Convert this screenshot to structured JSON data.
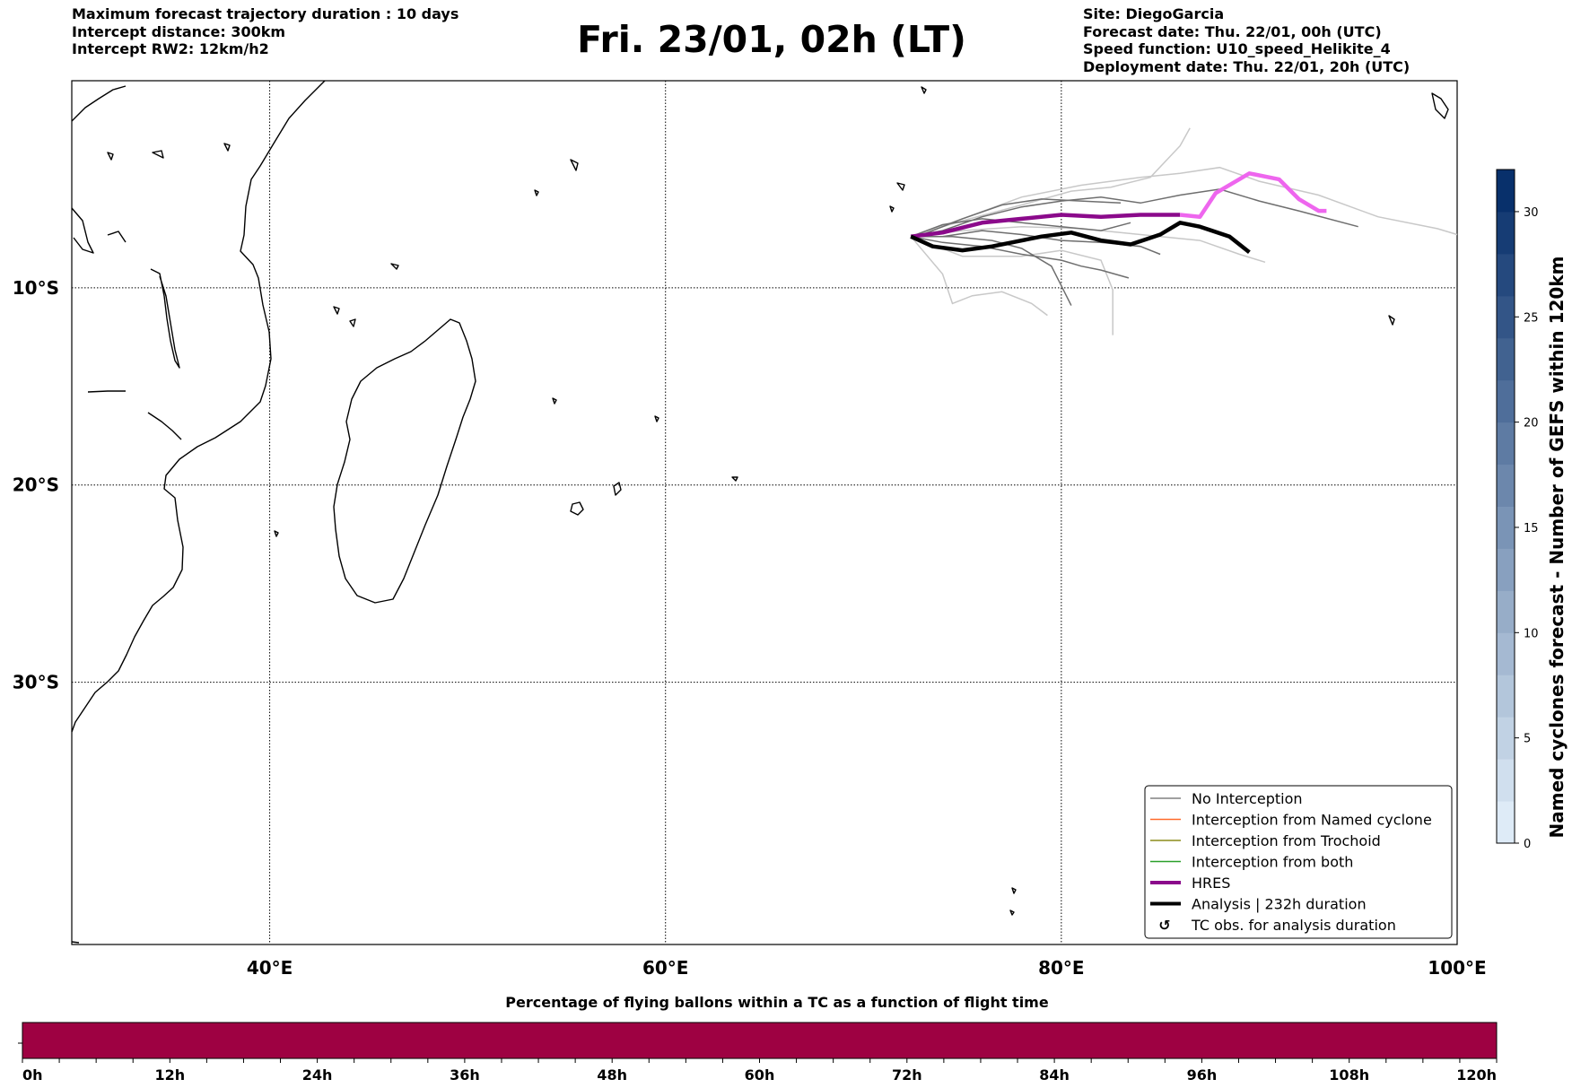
{
  "header_left": [
    "Maximum forecast trajectory duration : 10 days",
    "Intercept distance: 300km",
    "Intercept RW2: 12km/h2"
  ],
  "title": "Fri. 23/01, 02h (LT)",
  "header_right": [
    "Site: DiegoGarcia",
    "Forecast date: Thu. 22/01, 00h (UTC)",
    "Speed function: U10_speed_Helikite_4",
    "Deployment date: Thu. 22/01, 20h (UTC)"
  ],
  "map": {
    "lon_range": [
      30,
      100
    ],
    "lat_range": [
      -43.3,
      0.5
    ],
    "lon_ticks": [
      {
        "lon": 40,
        "label": "40°E"
      },
      {
        "lon": 60,
        "label": "60°E"
      },
      {
        "lon": 80,
        "label": "80°E"
      },
      {
        "lon": 100,
        "label": "100°E"
      }
    ],
    "lat_ticks": [
      {
        "lat": -10,
        "label": "10°S"
      },
      {
        "lat": -20,
        "label": "20°S"
      },
      {
        "lat": -30,
        "label": "30°S"
      }
    ],
    "legend": [
      {
        "label": "No Interception",
        "color": "#808080",
        "style": "thin"
      },
      {
        "label": "Interception from Named cyclone",
        "color": "#ff6a2a",
        "style": "thin"
      },
      {
        "label": "Interception from Trochoid",
        "color": "#8b8b1a",
        "style": "thin"
      },
      {
        "label": "Interception from both",
        "color": "#2aa02a",
        "style": "thin"
      },
      {
        "label": "HRES",
        "color": "#8b0a8b",
        "style": "thick"
      },
      {
        "label": "Analysis | 232h duration",
        "color": "#000000",
        "style": "thick"
      },
      {
        "label": "TC obs. for analysis duration",
        "color": "#000000",
        "style": "marker",
        "icon": "cyclone-symbol"
      }
    ],
    "colors": {
      "hres": "#8b0a8b",
      "hres_tail": "#ee66ee",
      "analysis": "#000000",
      "ensemble_dark": "#6e6e6e",
      "ensemble_light": "#c8c8c8"
    }
  },
  "chart_data": {
    "type": "line",
    "title": "",
    "xlabel": "",
    "ylabel": "",
    "xlim": [
      30,
      100
    ],
    "ylim": [
      -43.3,
      0.5
    ],
    "series": [
      {
        "name": "HRES",
        "points": [
          [
            72.4,
            -7.4
          ],
          [
            74,
            -7.2
          ],
          [
            76,
            -6.7
          ],
          [
            78,
            -6.5
          ],
          [
            80,
            -6.3
          ],
          [
            82,
            -6.4
          ],
          [
            84,
            -6.3
          ],
          [
            86,
            -6.3
          ],
          [
            87,
            -6.4
          ],
          [
            87.8,
            -5.2
          ],
          [
            89.5,
            -4.2
          ],
          [
            91,
            -4.5
          ],
          [
            92,
            -5.5
          ],
          [
            93,
            -6.1
          ],
          [
            93.4,
            -6.1
          ]
        ]
      },
      {
        "name": "Analysis | 232h duration",
        "points": [
          [
            72.4,
            -7.4
          ],
          [
            73.5,
            -7.9
          ],
          [
            75,
            -8.1
          ],
          [
            76.5,
            -7.9
          ],
          [
            77.5,
            -7.7
          ],
          [
            79,
            -7.4
          ],
          [
            80.5,
            -7.2
          ],
          [
            82,
            -7.6
          ],
          [
            83.5,
            -7.8
          ],
          [
            85,
            -7.3
          ],
          [
            86,
            -6.7
          ],
          [
            87,
            -6.9
          ],
          [
            88.5,
            -7.4
          ],
          [
            89.5,
            -8.2
          ]
        ]
      }
    ],
    "ensemble_members": [
      [
        [
          72.4,
          -7.4
        ],
        [
          74,
          -7.1
        ],
        [
          76,
          -6.4
        ],
        [
          78,
          -5.9
        ],
        [
          80,
          -5.6
        ],
        [
          82,
          -5.4
        ],
        [
          84,
          -5.7
        ],
        [
          86,
          -5.3
        ],
        [
          88,
          -5
        ],
        [
          90,
          -5.6
        ],
        [
          92,
          -6.1
        ],
        [
          95,
          -6.9
        ]
      ],
      [
        [
          72.4,
          -7.4
        ],
        [
          74,
          -7.7
        ],
        [
          76,
          -7.9
        ],
        [
          78,
          -8.3
        ],
        [
          80,
          -8.6
        ],
        [
          81,
          -8.9
        ],
        [
          82,
          -9.1
        ],
        [
          83.4,
          -9.5
        ]
      ],
      [
        [
          72.4,
          -7.4
        ],
        [
          73,
          -7.3
        ],
        [
          75,
          -6.5
        ],
        [
          77,
          -5.8
        ],
        [
          79,
          -5.5
        ],
        [
          81,
          -5.6
        ],
        [
          83,
          -5.7
        ]
      ],
      [
        [
          72.4,
          -7.4
        ],
        [
          74.5,
          -7.4
        ],
        [
          76.5,
          -7.6
        ],
        [
          78,
          -8
        ],
        [
          79.5,
          -8.9
        ],
        [
          80,
          -9.9
        ],
        [
          80.5,
          -10.9
        ]
      ],
      [
        [
          72.4,
          -7.4
        ],
        [
          74,
          -7.4
        ],
        [
          76,
          -7.1
        ],
        [
          78,
          -7.3
        ],
        [
          80,
          -7.6
        ],
        [
          82,
          -7.7
        ],
        [
          84,
          -7.9
        ],
        [
          85,
          -8.3
        ]
      ],
      [
        [
          72.4,
          -7.4
        ],
        [
          74,
          -6.8
        ],
        [
          76,
          -6.5
        ],
        [
          78,
          -6.7
        ],
        [
          80,
          -6.9
        ],
        [
          82,
          -7.1
        ],
        [
          83.5,
          -6.7
        ]
      ]
    ],
    "ensemble_light_members": [
      [
        [
          72.4,
          -7.4
        ],
        [
          75,
          -6.5
        ],
        [
          78,
          -5.4
        ],
        [
          81,
          -4.8
        ],
        [
          84,
          -4.4
        ],
        [
          86,
          -4.2
        ],
        [
          88,
          -3.9
        ],
        [
          90,
          -4.6
        ],
        [
          93,
          -5.3
        ],
        [
          96,
          -6.4
        ],
        [
          99,
          -7
        ],
        [
          100,
          -7.3
        ]
      ],
      [
        [
          72.4,
          -7.4
        ],
        [
          74,
          -9.3
        ],
        [
          74.5,
          -10.8
        ],
        [
          75.5,
          -10.4
        ],
        [
          77,
          -10.2
        ],
        [
          78.5,
          -10.8
        ],
        [
          79.3,
          -11.4
        ]
      ],
      [
        [
          72.4,
          -7.4
        ],
        [
          75,
          -8.4
        ],
        [
          78,
          -8.4
        ],
        [
          80,
          -8.1
        ],
        [
          82,
          -8.6
        ],
        [
          82.6,
          -10.1
        ],
        [
          82.6,
          -12.4
        ]
      ],
      [
        [
          72.4,
          -7.4
        ],
        [
          75,
          -6.6
        ],
        [
          78,
          -5.8
        ],
        [
          80.5,
          -5.1
        ],
        [
          82.5,
          -4.9
        ],
        [
          84.5,
          -4.4
        ],
        [
          86,
          -2.8
        ],
        [
          86.5,
          -1.9
        ]
      ],
      [
        [
          72.4,
          -7.4
        ],
        [
          75,
          -7.1
        ],
        [
          78,
          -6.9
        ],
        [
          81,
          -7
        ],
        [
          84,
          -7.3
        ],
        [
          87,
          -7.6
        ],
        [
          89,
          -8.3
        ],
        [
          90.3,
          -8.7
        ]
      ]
    ]
  },
  "colorbar_right": {
    "label": "Named cyclones forecast - Number of GEFS within 120km",
    "ticks": [
      "0",
      "5",
      "10",
      "15",
      "20",
      "25",
      "30"
    ],
    "range": [
      0,
      32
    ]
  },
  "colorbar_bottom": {
    "label": "Percentage of flying ballons within a TC as a function of flight time",
    "ticks": [
      "0h",
      "12h",
      "24h",
      "36h",
      "48h",
      "60h",
      "72h",
      "84h",
      "96h",
      "108h",
      "120h"
    ],
    "fill_color": "#9e0142"
  }
}
